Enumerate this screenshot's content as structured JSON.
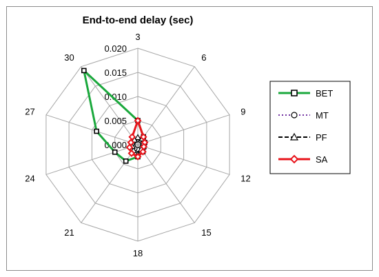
{
  "chart_data": {
    "type": "radar",
    "title": "End-to-end delay (sec)",
    "categories": [
      "3",
      "6",
      "9",
      "12",
      "15",
      "18",
      "21",
      "24",
      "27",
      "30"
    ],
    "rlim": [
      0.0,
      0.02
    ],
    "ticks": [
      "0.000",
      "0.005",
      "0.010",
      "0.015",
      "0.020"
    ],
    "grid": true,
    "legend_position": "right",
    "series": [
      {
        "name": "BET",
        "color": "#1aa83c",
        "marker": "square",
        "dash": "solid",
        "values": [
          0.005,
          0.002,
          0.0015,
          0.0013,
          0.0018,
          0.0025,
          0.0042,
          0.005,
          0.009,
          0.019
        ]
      },
      {
        "name": "MT",
        "color": "#7030a0",
        "marker": "circle",
        "dash": "dotted",
        "values": [
          0.001,
          0.001,
          0.001,
          0.001,
          0.001,
          0.001,
          0.001,
          0.001,
          0.001,
          0.001
        ]
      },
      {
        "name": "PF",
        "color": "#000000",
        "marker": "triangle",
        "dash": "dashed",
        "values": [
          0.0015,
          0.0015,
          0.0012,
          0.0012,
          0.0012,
          0.002,
          0.0015,
          0.0012,
          0.0012,
          0.0012
        ]
      },
      {
        "name": "SA",
        "color": "#e8141b",
        "marker": "diamond",
        "dash": "solid",
        "values": [
          0.005,
          0.002,
          0.0015,
          0.0013,
          0.0018,
          0.0025,
          0.0022,
          0.0018,
          0.0015,
          0.002
        ]
      }
    ]
  }
}
